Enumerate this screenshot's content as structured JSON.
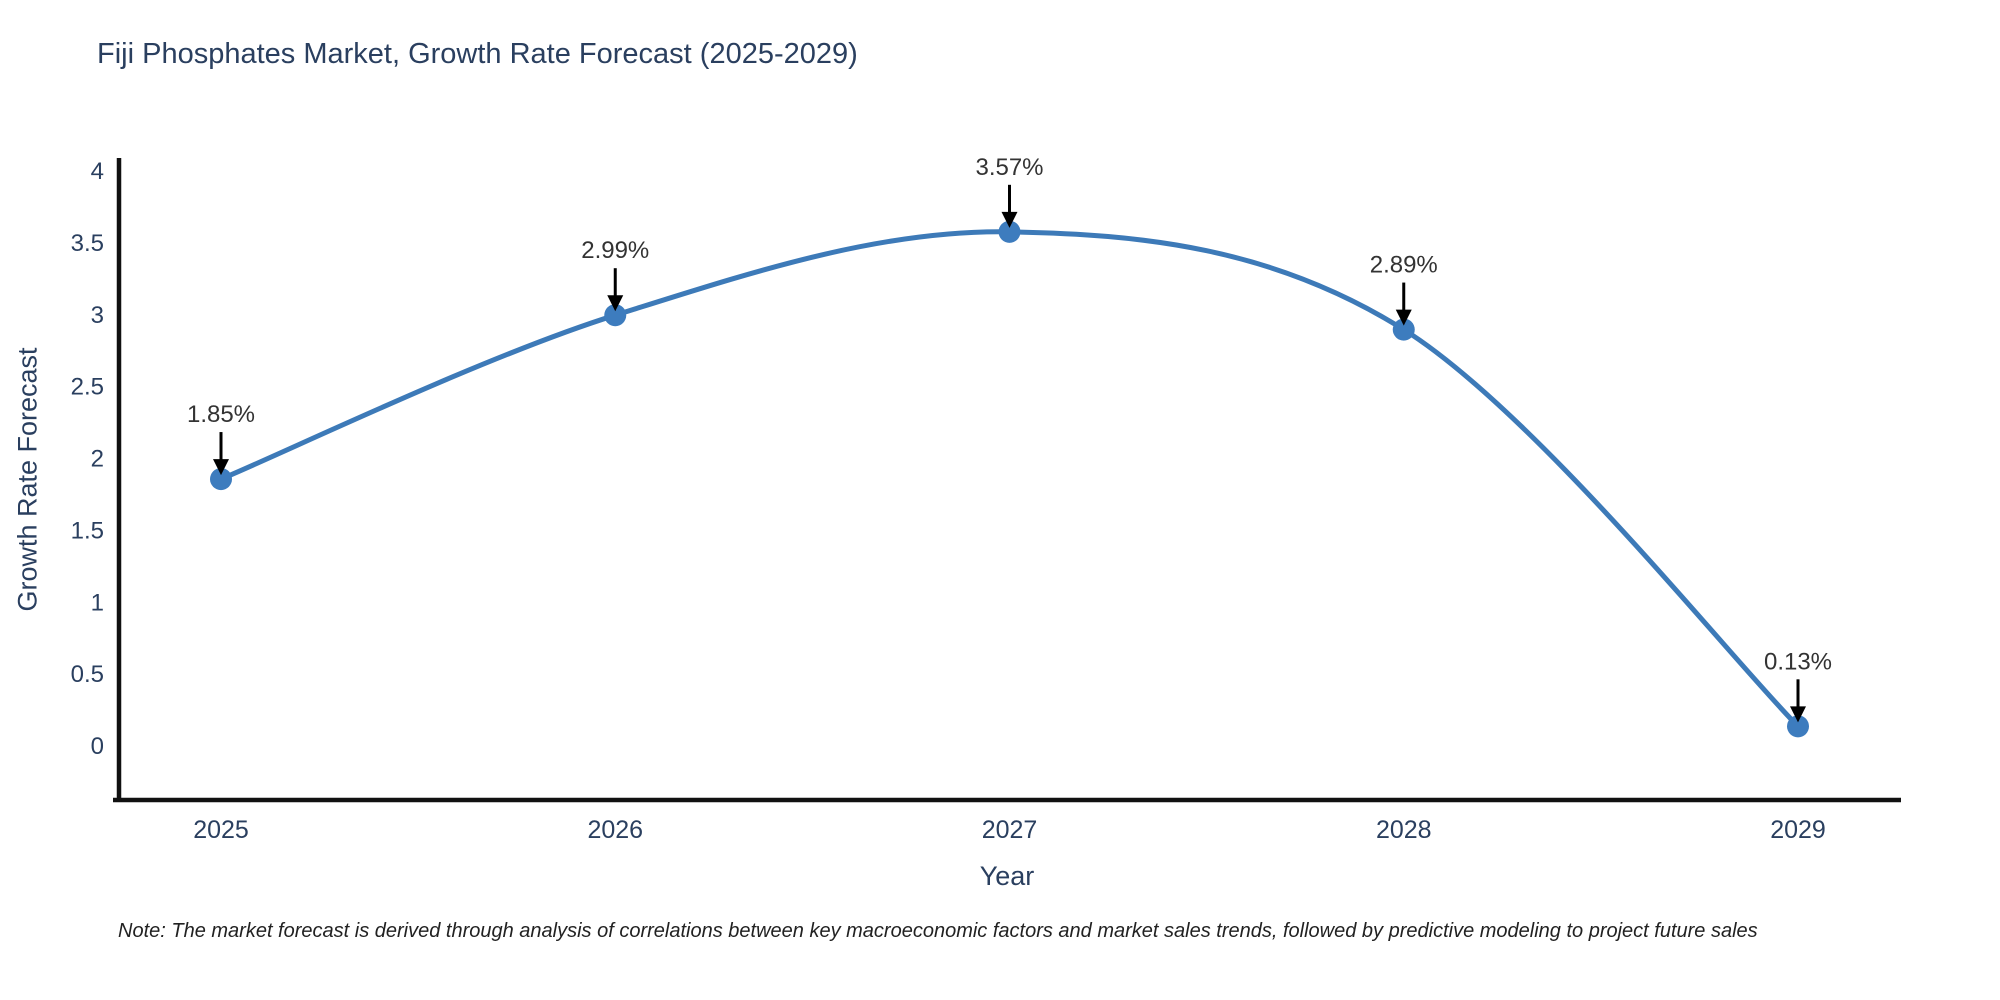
{
  "chart_data": {
    "type": "line",
    "title": "Fiji Phosphates Market, Growth Rate Forecast (2025-2029)",
    "xlabel": "Year",
    "ylabel": "Growth Rate Forecast",
    "x": [
      2025,
      2026,
      2027,
      2028,
      2029
    ],
    "values": [
      1.85,
      2.99,
      3.57,
      2.89,
      0.13
    ],
    "point_labels": [
      "1.85%",
      "2.99%",
      "3.57%",
      "2.89%",
      "0.13%"
    ],
    "y_ticks": [
      0,
      0.5,
      1,
      1.5,
      2,
      2.5,
      3,
      3.5,
      4
    ],
    "ylim": [
      -0.38,
      4.47
    ],
    "grid": false,
    "legend_position": "none",
    "line_shape": "spline",
    "line_color": "#3d7ab8",
    "marker_color": "#3d7cbe",
    "axis_color": "#111111",
    "text_color": "#2a3f5f",
    "annotation_text_color": "#333333",
    "annotation_arrow_color": "#000000",
    "note": "Note: The market forecast is derived through analysis of correlations between key macroeconomic factors and market sales trends, followed by predictive modeling to project future sales"
  }
}
